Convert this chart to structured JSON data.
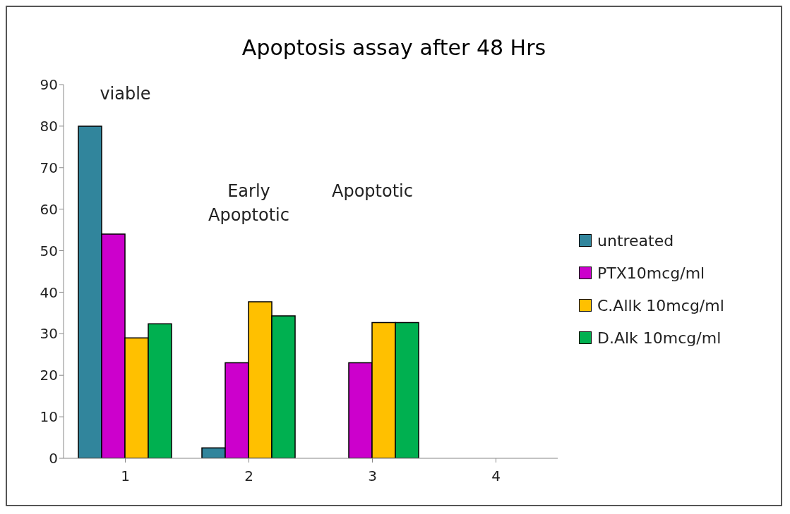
{
  "chart_data": {
    "type": "bar",
    "title": "Apoptosis assay after 48 Hrs",
    "categories": [
      "1",
      "2",
      "3",
      "4"
    ],
    "series": [
      {
        "name": "untreated",
        "color": "#31859c",
        "values": [
          80,
          2.5,
          null,
          null
        ]
      },
      {
        "name": "PTX10mcg/ml",
        "color": "#cc00cc",
        "values": [
          54,
          23,
          23,
          null
        ]
      },
      {
        "name": "C.Allk 10mcg/ml",
        "color": "#ffc000",
        "values": [
          29,
          37.7,
          32.7,
          null
        ]
      },
      {
        "name": "D.Alk 10mcg/ml",
        "color": "#00b050",
        "values": [
          32.4,
          34.3,
          32.7,
          null
        ]
      }
    ],
    "ylim": [
      0,
      90
    ],
    "yticks": [
      0,
      10,
      20,
      30,
      40,
      50,
      60,
      70,
      80,
      90
    ],
    "grid": false,
    "legend": "right",
    "annotations": [
      "viable",
      "Early Apoptotic",
      "Apoptotic"
    ]
  }
}
